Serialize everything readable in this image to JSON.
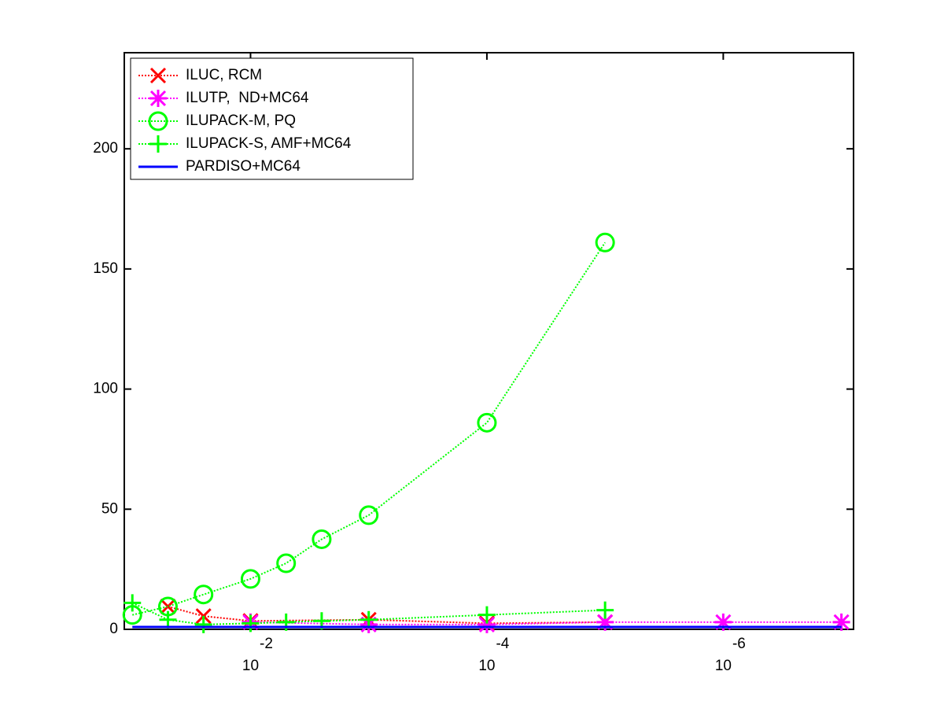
{
  "chart_data": {
    "type": "line",
    "x_scale": "log",
    "xlim": [
      0.117,
      7.9e-08
    ],
    "ylim": [
      0,
      240
    ],
    "xticks": [
      {
        "value": 0.01,
        "label": "10",
        "exponent": "-2"
      },
      {
        "value": 0.0001,
        "label": "10",
        "exponent": "-4"
      },
      {
        "value": 1e-06,
        "label": "10",
        "exponent": "-6"
      }
    ],
    "yticks": [
      0,
      50,
      100,
      150,
      200
    ],
    "legend": "upper-left",
    "series": [
      {
        "name": "ILUC, RCM",
        "color": "#ff0000",
        "marker": "x",
        "line": "dotted",
        "x": [
          0.05,
          0.025,
          0.01,
          0.001,
          0.0001,
          1e-05
        ],
        "values": [
          9.5,
          5.5,
          3.5,
          4,
          2.5,
          3
        ]
      },
      {
        "name": "ILUTP,  ND+MC64",
        "color": "#ff00ff",
        "marker": "star",
        "line": "dotted",
        "x": [
          0.01,
          0.001,
          0.0001,
          1e-05,
          1e-06,
          1e-07
        ],
        "values": [
          3,
          2,
          2,
          3,
          3,
          3
        ]
      },
      {
        "name": "ILUPACK-M, PQ",
        "color": "#00ff00",
        "marker": "circle",
        "line": "dotted",
        "x": [
          0.1,
          0.05,
          0.025,
          0.01,
          0.005,
          0.0025,
          0.001,
          0.0001,
          1e-05
        ],
        "values": [
          6,
          9.5,
          14.5,
          21,
          27.5,
          37.5,
          47.5,
          86,
          161
        ]
      },
      {
        "name": "ILUPACK-S, AMF+MC64",
        "color": "#00ff00",
        "marker": "plus",
        "line": "dotted",
        "x": [
          0.1,
          0.05,
          0.025,
          0.01,
          0.005,
          0.0025,
          0.001,
          0.0001,
          1e-05
        ],
        "values": [
          11,
          4,
          2,
          2.5,
          3,
          3.5,
          4,
          6,
          8
        ]
      },
      {
        "name": "PARDISO+MC64",
        "color": "#0000ff",
        "marker": "none",
        "line": "solid",
        "x": [
          0.1,
          0.05,
          0.025,
          0.01,
          0.005,
          0.0025,
          0.001,
          0.0001,
          1e-05,
          1e-06,
          1e-07
        ],
        "values": [
          1,
          1,
          1,
          1,
          1,
          1,
          1,
          1,
          1,
          1,
          1
        ]
      }
    ]
  }
}
